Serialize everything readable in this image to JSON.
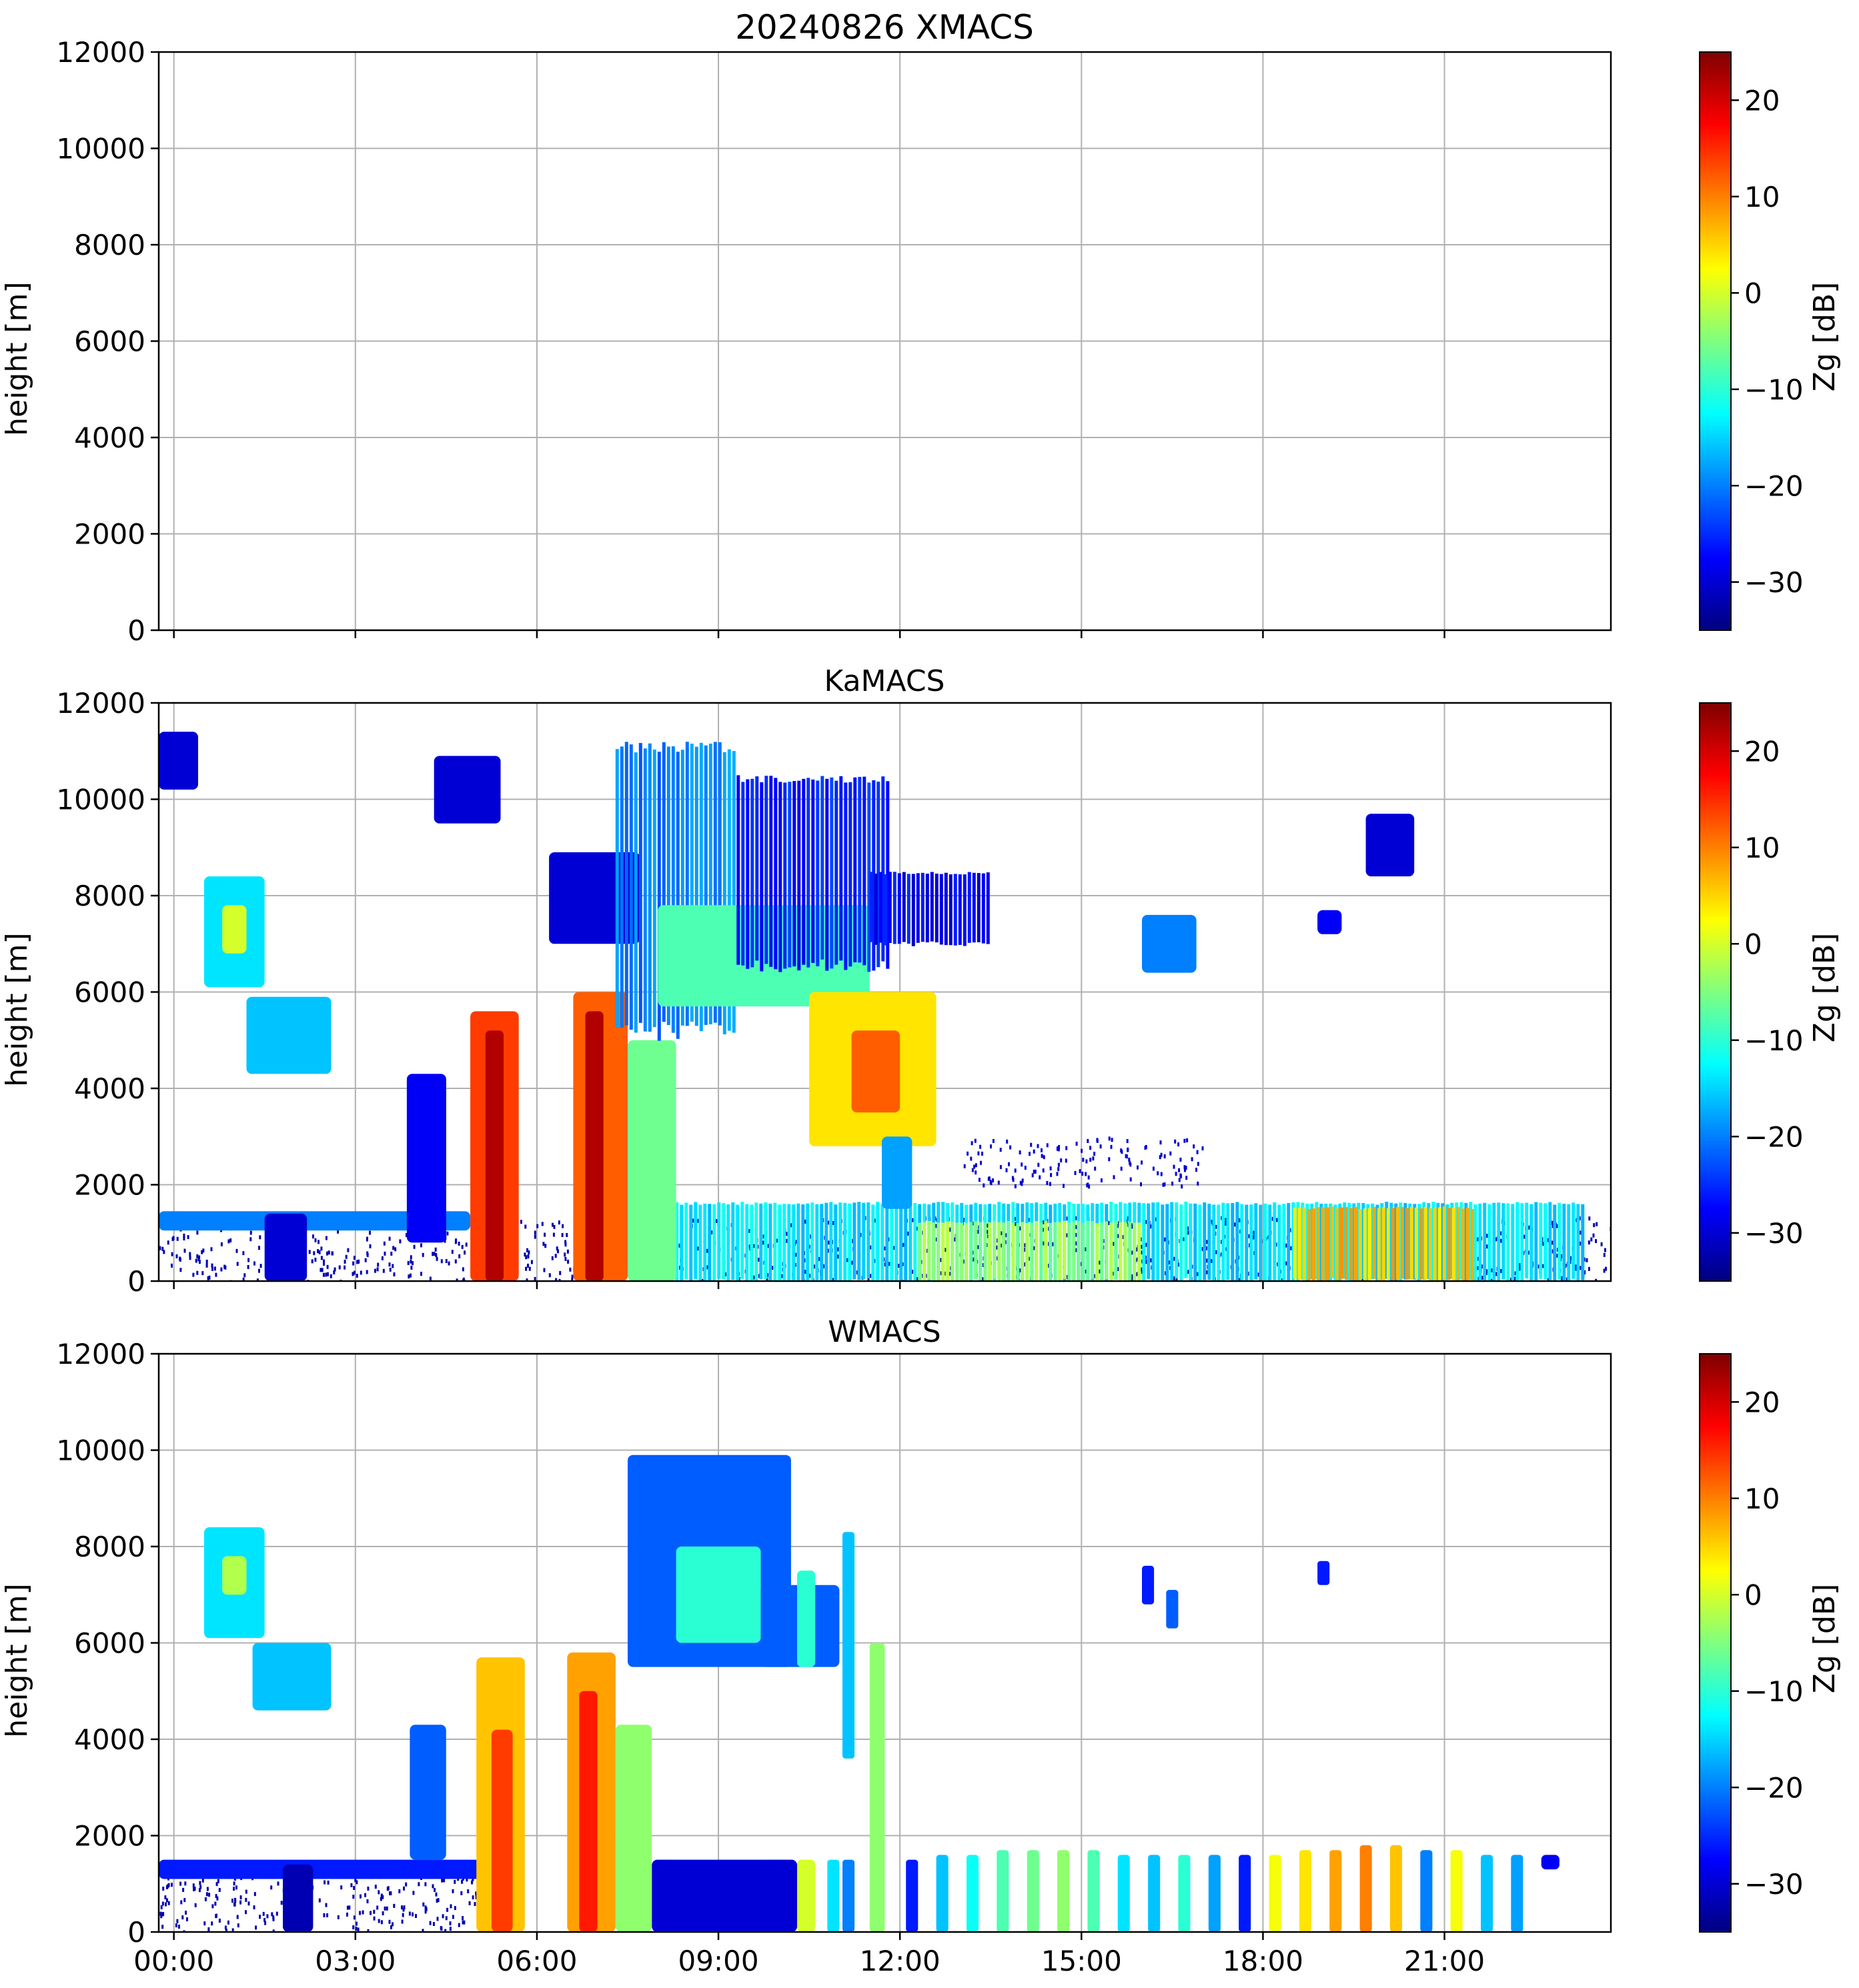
{
  "figure": {
    "panels": [
      {
        "id": "xmacs",
        "title": "20240826 XMACS"
      },
      {
        "id": "kamacs",
        "title": "KaMACS"
      },
      {
        "id": "wmacs",
        "title": "WMACS"
      }
    ]
  },
  "colors": {
    "axis": "#000000",
    "grid": "#b0b0b0",
    "jet": [
      "#00007f",
      "#0000ff",
      "#007fff",
      "#00ffff",
      "#7fff7f",
      "#ffff00",
      "#ff7f00",
      "#ff0000",
      "#7f0000"
    ]
  },
  "chart_data": [
    {
      "type": "heatmap",
      "title": "20240826 XMACS",
      "xlabel": "",
      "ylabel": "height [m]",
      "xlim": [
        -0.25,
        23.75
      ],
      "ylim": [
        0,
        12000
      ],
      "xtick_values": [
        0,
        3,
        6,
        9,
        12,
        15,
        18,
        21
      ],
      "xtick_labels": [
        "00:00",
        "03:00",
        "06:00",
        "09:00",
        "12:00",
        "15:00",
        "18:00",
        "21:00"
      ],
      "xtick_labels_shown": false,
      "ytick_values": [
        0,
        2000,
        4000,
        6000,
        8000,
        10000,
        12000
      ],
      "ytick_labels": [
        "0",
        "2000",
        "4000",
        "6000",
        "8000",
        "10000",
        "12000"
      ],
      "grid": true,
      "colorbar": {
        "label": "Zg [dB]",
        "range": [
          -35,
          25
        ],
        "tick_values": [
          -30,
          -20,
          -10,
          0,
          10,
          20
        ],
        "tick_labels": [
          "−30",
          "−20",
          "−10",
          "0",
          "10",
          "20"
        ],
        "colormap": "jet"
      },
      "echoes": []
    },
    {
      "type": "heatmap",
      "title": "KaMACS",
      "xlabel": "",
      "ylabel": "height [m]",
      "xlim": [
        -0.25,
        23.75
      ],
      "ylim": [
        0,
        12000
      ],
      "xtick_values": [
        0,
        3,
        6,
        9,
        12,
        15,
        18,
        21
      ],
      "xtick_labels": [
        "00:00",
        "03:00",
        "06:00",
        "09:00",
        "12:00",
        "15:00",
        "18:00",
        "21:00"
      ],
      "xtick_labels_shown": false,
      "ytick_values": [
        0,
        2000,
        4000,
        6000,
        8000,
        10000,
        12000
      ],
      "ytick_labels": [
        "0",
        "2000",
        "4000",
        "6000",
        "8000",
        "10000",
        "12000"
      ],
      "grid": true,
      "colorbar": {
        "label": "Zg [dB]",
        "range": [
          -35,
          25
        ],
        "tick_values": [
          -30,
          -20,
          -10,
          0,
          10,
          20
        ],
        "tick_labels": [
          "−30",
          "−20",
          "−10",
          "0",
          "10",
          "20"
        ],
        "colormap": "jet"
      },
      "echoes": [
        {
          "t0": -0.25,
          "t1": 23.75,
          "h0": 0,
          "h1": 1350,
          "zg": -32,
          "pattern": "speckle"
        },
        {
          "t0": -0.25,
          "t1": 4.9,
          "h0": 1050,
          "h1": 1450,
          "zg": -20
        },
        {
          "t0": 1.5,
          "t1": 2.2,
          "h0": 0,
          "h1": 1400,
          "zg": -30
        },
        {
          "t0": 7.9,
          "t1": 23.3,
          "h0": 0,
          "h1": 1650,
          "zg": -14,
          "pattern": "stripes"
        },
        {
          "t0": 12.3,
          "t1": 16.0,
          "h0": 0,
          "h1": 1250,
          "zg": -4,
          "pattern": "stripes"
        },
        {
          "t0": 18.5,
          "t1": 21.5,
          "h0": 0,
          "h1": 1550,
          "zg": 6,
          "pattern": "stripes"
        },
        {
          "t0": 4.9,
          "t1": 5.7,
          "h0": 0,
          "h1": 5600,
          "zg": 14
        },
        {
          "t0": 5.15,
          "t1": 5.45,
          "h0": 0,
          "h1": 5200,
          "zg": 22
        },
        {
          "t0": 6.6,
          "t1": 7.5,
          "h0": 0,
          "h1": 6000,
          "zg": 12
        },
        {
          "t0": 6.8,
          "t1": 7.1,
          "h0": 0,
          "h1": 5600,
          "zg": 22
        },
        {
          "t0": 7.5,
          "t1": 8.3,
          "h0": 0,
          "h1": 5000,
          "zg": -6
        },
        {
          "t0": 3.85,
          "t1": 4.5,
          "h0": 800,
          "h1": 4300,
          "zg": -28
        },
        {
          "t0": 6.2,
          "t1": 7.7,
          "h0": 7000,
          "h1": 8900,
          "zg": -30
        },
        {
          "t0": 7.3,
          "t1": 9.3,
          "h0": 5200,
          "h1": 11200,
          "zg": -20,
          "pattern": "stripes"
        },
        {
          "t0": 8.0,
          "t1": 11.5,
          "h0": 5700,
          "h1": 7800,
          "zg": -8
        },
        {
          "t0": 9.3,
          "t1": 11.8,
          "h0": 6500,
          "h1": 10500,
          "zg": -26,
          "pattern": "stripes"
        },
        {
          "t0": 11.5,
          "t1": 13.5,
          "h0": 7000,
          "h1": 8500,
          "zg": -28,
          "pattern": "stripes"
        },
        {
          "t0": 10.5,
          "t1": 12.6,
          "h0": 2800,
          "h1": 6000,
          "zg": 4
        },
        {
          "t0": 11.2,
          "t1": 12.0,
          "h0": 3500,
          "h1": 5200,
          "zg": 12
        },
        {
          "t0": 11.7,
          "t1": 12.2,
          "h0": 1500,
          "h1": 3000,
          "zg": -18
        },
        {
          "t0": 0.5,
          "t1": 1.5,
          "h0": 6100,
          "h1": 8400,
          "zg": -14
        },
        {
          "t0": 0.8,
          "t1": 1.2,
          "h0": 6800,
          "h1": 7800,
          "zg": 0
        },
        {
          "t0": 1.2,
          "t1": 2.6,
          "h0": 4300,
          "h1": 5900,
          "zg": -16
        },
        {
          "t0": -0.25,
          "t1": 0.4,
          "h0": 10200,
          "h1": 11400,
          "zg": -30
        },
        {
          "t0": 4.3,
          "t1": 5.4,
          "h0": 9500,
          "h1": 10900,
          "zg": -30
        },
        {
          "t0": 16.0,
          "t1": 16.9,
          "h0": 6400,
          "h1": 7600,
          "zg": -20
        },
        {
          "t0": 18.9,
          "t1": 19.3,
          "h0": 7200,
          "h1": 7700,
          "zg": -28
        },
        {
          "t0": 19.7,
          "t1": 20.5,
          "h0": 8400,
          "h1": 9700,
          "zg": -30
        },
        {
          "t0": 13.0,
          "t1": 17.0,
          "h0": 2000,
          "h1": 3000,
          "zg": -30,
          "pattern": "speckle"
        }
      ]
    },
    {
      "type": "heatmap",
      "title": "WMACS",
      "xlabel": "",
      "ylabel": "height [m]",
      "xlim": [
        -0.25,
        23.75
      ],
      "ylim": [
        0,
        12000
      ],
      "xtick_values": [
        0,
        3,
        6,
        9,
        12,
        15,
        18,
        21
      ],
      "xtick_labels": [
        "00:00",
        "03:00",
        "06:00",
        "09:00",
        "12:00",
        "15:00",
        "18:00",
        "21:00"
      ],
      "xtick_labels_shown": true,
      "ytick_values": [
        0,
        2000,
        4000,
        6000,
        8000,
        10000,
        12000
      ],
      "ytick_labels": [
        "0",
        "2000",
        "4000",
        "6000",
        "8000",
        "10000",
        "12000"
      ],
      "grid": true,
      "colorbar": {
        "label": "Zg [dB]",
        "range": [
          -35,
          25
        ],
        "tick_values": [
          -30,
          -20,
          -10,
          0,
          10,
          20
        ],
        "tick_labels": [
          "−30",
          "−20",
          "−10",
          "0",
          "10",
          "20"
        ],
        "colormap": "jet"
      },
      "echoes": [
        {
          "t0": -0.25,
          "t1": 5.2,
          "h0": 0,
          "h1": 1200,
          "zg": -32,
          "pattern": "speckle"
        },
        {
          "t0": -0.25,
          "t1": 5.6,
          "h0": 1100,
          "h1": 1500,
          "zg": -26
        },
        {
          "t0": 1.8,
          "t1": 2.3,
          "h0": 0,
          "h1": 1400,
          "zg": -32
        },
        {
          "t0": 5.0,
          "t1": 5.8,
          "h0": 0,
          "h1": 5700,
          "zg": 6
        },
        {
          "t0": 5.25,
          "t1": 5.6,
          "h0": 0,
          "h1": 4200,
          "zg": 14
        },
        {
          "t0": 6.5,
          "t1": 7.3,
          "h0": 0,
          "h1": 5800,
          "zg": 8
        },
        {
          "t0": 6.7,
          "t1": 7.0,
          "h0": 0,
          "h1": 5000,
          "zg": 16
        },
        {
          "t0": 7.3,
          "t1": 7.9,
          "h0": 0,
          "h1": 4300,
          "zg": -4
        },
        {
          "t0": 7.9,
          "t1": 10.3,
          "h0": 0,
          "h1": 1500,
          "zg": -30
        },
        {
          "t0": 3.9,
          "t1": 4.5,
          "h0": 1500,
          "h1": 4300,
          "zg": -22
        },
        {
          "t0": 0.5,
          "t1": 1.5,
          "h0": 6100,
          "h1": 8400,
          "zg": -14
        },
        {
          "t0": 0.8,
          "t1": 1.2,
          "h0": 7000,
          "h1": 7800,
          "zg": -2
        },
        {
          "t0": 1.3,
          "t1": 2.6,
          "h0": 4600,
          "h1": 6000,
          "zg": -16
        },
        {
          "t0": 7.5,
          "t1": 10.2,
          "h0": 5500,
          "h1": 9900,
          "zg": -22
        },
        {
          "t0": 8.3,
          "t1": 9.7,
          "h0": 6000,
          "h1": 8000,
          "zg": -10
        },
        {
          "t0": 9.7,
          "t1": 11.0,
          "h0": 5500,
          "h1": 7200,
          "zg": -22
        },
        {
          "t0": 10.3,
          "t1": 10.6,
          "h0": 0,
          "h1": 1500,
          "zg": 0
        },
        {
          "t0": 10.3,
          "t1": 10.6,
          "h0": 5500,
          "h1": 7500,
          "zg": -10
        },
        {
          "t0": 10.8,
          "t1": 11.0,
          "h0": 0,
          "h1": 1500,
          "zg": -14
        },
        {
          "t0": 11.05,
          "t1": 11.25,
          "h0": 3600,
          "h1": 8300,
          "zg": -16
        },
        {
          "t0": 11.05,
          "t1": 11.25,
          "h0": 0,
          "h1": 1500,
          "zg": -20
        },
        {
          "t0": 11.5,
          "t1": 11.75,
          "h0": 0,
          "h1": 6000,
          "zg": -4
        },
        {
          "t0": 12.1,
          "t1": 12.3,
          "h0": 0,
          "h1": 1500,
          "zg": -26
        },
        {
          "t0": 12.6,
          "t1": 12.8,
          "h0": 0,
          "h1": 1600,
          "zg": -16
        },
        {
          "t0": 13.1,
          "t1": 13.3,
          "h0": 0,
          "h1": 1600,
          "zg": -12
        },
        {
          "t0": 13.6,
          "t1": 13.8,
          "h0": 0,
          "h1": 1700,
          "zg": -8
        },
        {
          "t0": 14.1,
          "t1": 14.3,
          "h0": 0,
          "h1": 1700,
          "zg": -6
        },
        {
          "t0": 14.6,
          "t1": 14.8,
          "h0": 0,
          "h1": 1700,
          "zg": -4
        },
        {
          "t0": 15.1,
          "t1": 15.3,
          "h0": 0,
          "h1": 1700,
          "zg": -8
        },
        {
          "t0": 15.6,
          "t1": 15.8,
          "h0": 0,
          "h1": 1600,
          "zg": -14
        },
        {
          "t0": 16.1,
          "t1": 16.3,
          "h0": 0,
          "h1": 1600,
          "zg": -16
        },
        {
          "t0": 16.6,
          "t1": 16.8,
          "h0": 0,
          "h1": 1600,
          "zg": -10
        },
        {
          "t0": 17.1,
          "t1": 17.3,
          "h0": 0,
          "h1": 1600,
          "zg": -18
        },
        {
          "t0": 17.6,
          "t1": 17.8,
          "h0": 0,
          "h1": 1600,
          "zg": -26
        },
        {
          "t0": 18.1,
          "t1": 18.3,
          "h0": 0,
          "h1": 1600,
          "zg": 2
        },
        {
          "t0": 18.6,
          "t1": 18.8,
          "h0": 0,
          "h1": 1700,
          "zg": 4
        },
        {
          "t0": 19.1,
          "t1": 19.3,
          "h0": 0,
          "h1": 1700,
          "zg": 8
        },
        {
          "t0": 19.6,
          "t1": 19.8,
          "h0": 0,
          "h1": 1800,
          "zg": 10
        },
        {
          "t0": 20.1,
          "t1": 20.3,
          "h0": 0,
          "h1": 1800,
          "zg": 6
        },
        {
          "t0": 20.6,
          "t1": 20.8,
          "h0": 0,
          "h1": 1700,
          "zg": -20
        },
        {
          "t0": 21.1,
          "t1": 21.3,
          "h0": 0,
          "h1": 1700,
          "zg": 2
        },
        {
          "t0": 21.6,
          "t1": 21.8,
          "h0": 0,
          "h1": 1600,
          "zg": -16
        },
        {
          "t0": 22.1,
          "t1": 22.3,
          "h0": 0,
          "h1": 1600,
          "zg": -18
        },
        {
          "t0": 22.6,
          "t1": 22.9,
          "h0": 1300,
          "h1": 1600,
          "zg": -28
        },
        {
          "t0": 16.0,
          "t1": 16.2,
          "h0": 6800,
          "h1": 7600,
          "zg": -26
        },
        {
          "t0": 16.4,
          "t1": 16.6,
          "h0": 6300,
          "h1": 7100,
          "zg": -22
        },
        {
          "t0": 18.9,
          "t1": 19.1,
          "h0": 7200,
          "h1": 7700,
          "zg": -26
        }
      ]
    }
  ]
}
